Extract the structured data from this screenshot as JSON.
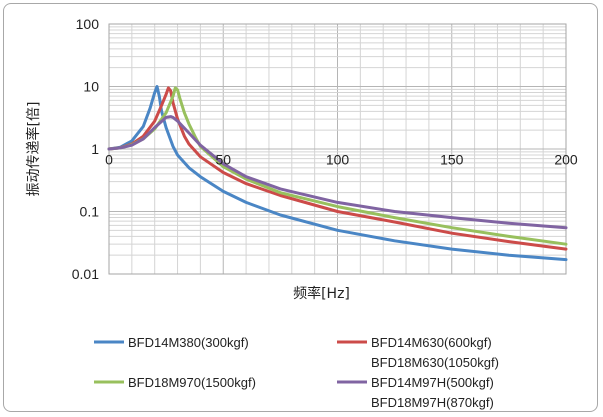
{
  "chart_data": {
    "type": "line",
    "title": "",
    "xlabel": "频率[Hz]",
    "ylabel": "振动传递率[倍]",
    "x_scale": "linear",
    "y_scale": "log",
    "xlim": [
      0,
      200
    ],
    "ylim": [
      0.01,
      100
    ],
    "x_ticks": [
      "0",
      "50",
      "100",
      "150",
      "200"
    ],
    "y_ticks": [
      "100",
      "10",
      "1",
      "0.1",
      "0.01"
    ],
    "grid": true,
    "legend_position": "bottom",
    "series": [
      {
        "name": "BFD14M380(300kgf)",
        "name_line2": "",
        "color": "#4a86c5",
        "x": [
          0,
          5,
          10,
          15,
          18,
          20,
          21,
          22,
          23,
          25,
          28,
          30,
          35,
          40,
          50,
          60,
          75,
          100,
          125,
          150,
          175,
          200
        ],
        "y": [
          1.0,
          1.07,
          1.35,
          2.3,
          4.5,
          8.0,
          10.0,
          7.0,
          4.0,
          2.2,
          1.1,
          0.8,
          0.5,
          0.36,
          0.21,
          0.14,
          0.088,
          0.05,
          0.034,
          0.025,
          0.02,
          0.017
        ]
      },
      {
        "name": "BFD14M630(600kgf)",
        "name_line2": "BFD18M630(1050kgf)",
        "color": "#cc4b49",
        "x": [
          0,
          5,
          10,
          15,
          20,
          23,
          25,
          26,
          27,
          28,
          30,
          33,
          35,
          40,
          50,
          60,
          75,
          100,
          125,
          150,
          175,
          200
        ],
        "y": [
          1.0,
          1.05,
          1.2,
          1.6,
          2.8,
          5.0,
          7.5,
          9.5,
          8.5,
          5.5,
          3.0,
          1.6,
          1.2,
          0.75,
          0.42,
          0.28,
          0.18,
          0.1,
          0.068,
          0.045,
          0.033,
          0.025
        ]
      },
      {
        "name": "BFD18M970(1500kgf)",
        "name_line2": "",
        "color": "#98c05d",
        "x": [
          0,
          5,
          10,
          15,
          20,
          25,
          28,
          29,
          30,
          31,
          33,
          35,
          38,
          40,
          50,
          60,
          75,
          100,
          125,
          150,
          175,
          200
        ],
        "y": [
          1.0,
          1.04,
          1.17,
          1.45,
          2.1,
          3.8,
          7.0,
          9.5,
          8.8,
          6.5,
          3.8,
          2.5,
          1.5,
          1.1,
          0.52,
          0.33,
          0.2,
          0.12,
          0.08,
          0.055,
          0.04,
          0.03
        ]
      },
      {
        "name": "BFD14M97H(500kgf)",
        "name_line2": "BFD18M97H(870kgf)",
        "color": "#8064a2",
        "x": [
          0,
          5,
          10,
          15,
          20,
          25,
          27,
          28,
          30,
          35,
          40,
          50,
          60,
          75,
          100,
          125,
          150,
          175,
          200
        ],
        "y": [
          1.0,
          1.04,
          1.15,
          1.45,
          2.2,
          3.2,
          3.3,
          3.2,
          2.8,
          1.8,
          1.15,
          0.58,
          0.36,
          0.23,
          0.14,
          0.1,
          0.08,
          0.065,
          0.055
        ]
      }
    ]
  }
}
